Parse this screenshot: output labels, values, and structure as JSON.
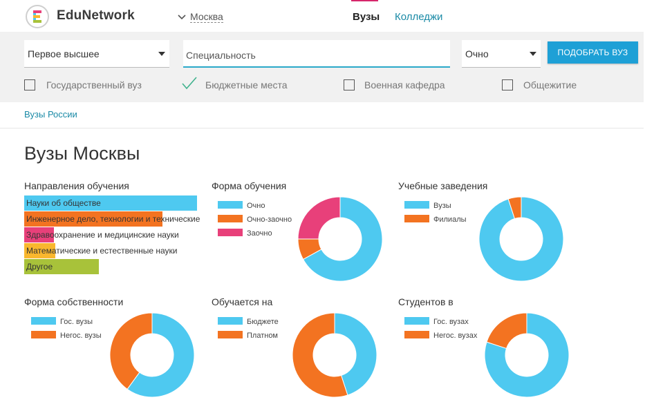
{
  "header": {
    "brand": "EduNetwork",
    "logo_letter": "E",
    "city": "Москва",
    "tabs": [
      {
        "label": "Вузы",
        "active": true
      },
      {
        "label": "Колледжи",
        "active": false
      }
    ]
  },
  "search": {
    "level_select": "Первое высшее",
    "specialty_placeholder": "Специальность",
    "form_select": "Очно",
    "find_button": "ПОДОБРАТЬ ВУЗ",
    "checkboxes": [
      {
        "label": "Государственный вуз",
        "checked": false
      },
      {
        "label": "Бюджетные места",
        "checked": true
      },
      {
        "label": "Военная кафедра",
        "checked": false
      },
      {
        "label": "Общежитие",
        "checked": false
      }
    ]
  },
  "breadcrumb": "Вузы России",
  "page_title": "Вузы Москвы",
  "colors": {
    "blue": "#4ec9f0",
    "orange": "#f37321",
    "pink": "#e8407a",
    "yellow": "#f9b72e",
    "green": "#a8c23a",
    "accent": "#1ea0d6"
  },
  "directions": {
    "title": "Направления обучения",
    "items": [
      {
        "label": "Науки об обществе",
        "value": 100,
        "color": "#4ec9f0"
      },
      {
        "label": "Инженерное дело, технологии и технические науки",
        "value": 80,
        "color": "#f37321"
      },
      {
        "label": "Здравоохранение и медицинские науки",
        "value": 17,
        "color": "#e8407a"
      },
      {
        "label": "Математические и естественные науки",
        "value": 18,
        "color": "#f9b72e"
      },
      {
        "label": "Другое",
        "value": 43,
        "color": "#a8c23a"
      }
    ]
  },
  "chart_data": [
    {
      "type": "pie",
      "title": "Форма обучения",
      "categories": [
        "Очно",
        "Очно-заочно",
        "Заочно"
      ],
      "values": [
        67,
        8,
        25
      ],
      "colors": [
        "#4ec9f0",
        "#f37321",
        "#e8407a"
      ]
    },
    {
      "type": "pie",
      "title": "Учебные заведения",
      "categories": [
        "Вузы",
        "Филиалы"
      ],
      "values": [
        95,
        5
      ],
      "colors": [
        "#4ec9f0",
        "#f37321"
      ]
    },
    {
      "type": "pie",
      "title": "Форма собственности",
      "categories": [
        "Гос. вузы",
        "Негос. вузы"
      ],
      "values": [
        60,
        40
      ],
      "colors": [
        "#4ec9f0",
        "#f37321"
      ]
    },
    {
      "type": "pie",
      "title": "Обучается на",
      "categories": [
        "Бюджете",
        "Платном"
      ],
      "values": [
        45,
        55
      ],
      "colors": [
        "#4ec9f0",
        "#f37321"
      ]
    },
    {
      "type": "pie",
      "title": "Студентов в",
      "categories": [
        "Гос. вузах",
        "Негос. вузах"
      ],
      "values": [
        80,
        20
      ],
      "colors": [
        "#4ec9f0",
        "#f37321"
      ]
    }
  ]
}
